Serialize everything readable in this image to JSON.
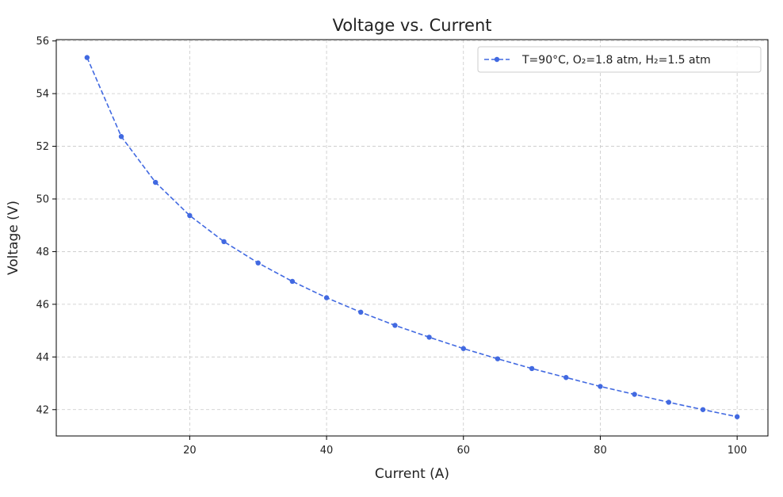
{
  "chart_data": {
    "type": "line",
    "title": "Voltage vs. Current",
    "xlabel": "Current (A)",
    "ylabel": "Voltage (V)",
    "xlim": [
      0.5,
      104.5
    ],
    "ylim": [
      41.0,
      56.05
    ],
    "xticks": [
      20,
      40,
      60,
      80,
      100
    ],
    "yticks": [
      42,
      44,
      46,
      48,
      50,
      52,
      54,
      56
    ],
    "grid": true,
    "legend_position": "top-right",
    "series": [
      {
        "name": "T=90°C, O₂=1.8 atm, H₂=1.5 atm",
        "color": "#4169e1",
        "line_style": "dashed",
        "marker": "circle",
        "x": [
          5,
          10,
          15,
          20,
          25,
          30,
          35,
          40,
          45,
          50,
          55,
          60,
          65,
          70,
          75,
          80,
          85,
          90,
          95,
          100
        ],
        "y": [
          55.37,
          52.37,
          50.63,
          49.37,
          48.38,
          47.57,
          46.87,
          46.25,
          45.7,
          45.2,
          44.75,
          44.32,
          43.93,
          43.56,
          43.22,
          42.88,
          42.58,
          42.28,
          42.0,
          41.73
        ]
      }
    ]
  }
}
